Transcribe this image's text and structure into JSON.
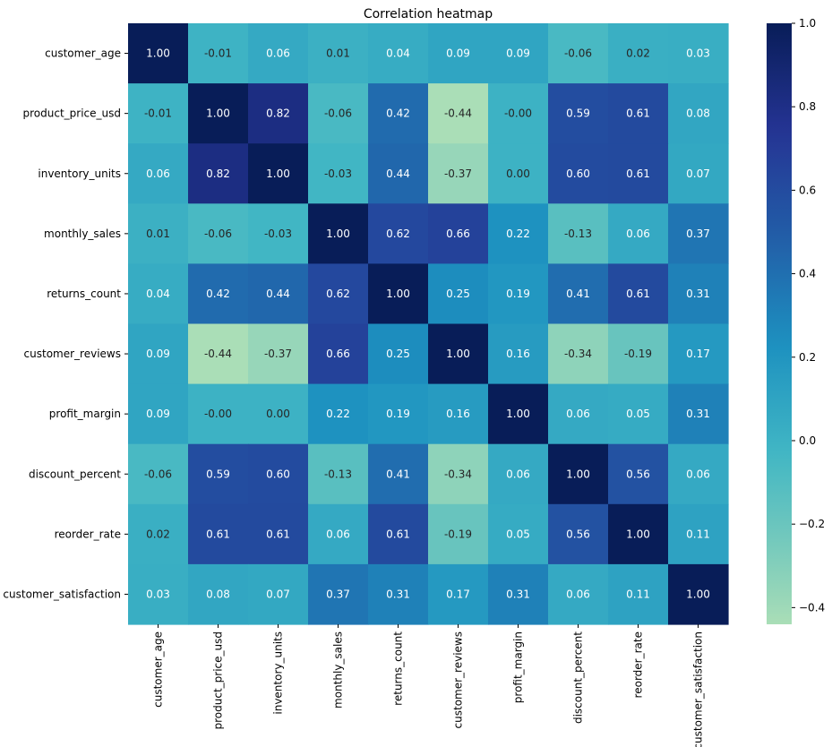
{
  "chart_data": {
    "type": "heatmap",
    "title": "Correlation heatmap",
    "xlabel": "",
    "ylabel": "",
    "colormap": "YlGnBu",
    "annotated": true,
    "value_format": "0.00",
    "categories": [
      "customer_age",
      "product_price_usd",
      "inventory_units",
      "monthly_sales",
      "returns_count",
      "customer_reviews",
      "profit_margin",
      "discount_percent",
      "reorder_rate",
      "customer_satisfaction"
    ],
    "values": [
      [
        1.0,
        -0.01,
        0.06,
        0.01,
        0.04,
        0.09,
        0.09,
        -0.06,
        0.02,
        0.03
      ],
      [
        -0.01,
        1.0,
        0.82,
        -0.06,
        0.42,
        -0.44,
        -0.0,
        0.59,
        0.61,
        0.08
      ],
      [
        0.06,
        0.82,
        1.0,
        -0.03,
        0.44,
        -0.37,
        0.0,
        0.6,
        0.61,
        0.07
      ],
      [
        0.01,
        -0.06,
        -0.03,
        1.0,
        0.62,
        0.66,
        0.22,
        -0.13,
        0.06,
        0.37
      ],
      [
        0.04,
        0.42,
        0.44,
        0.62,
        1.0,
        0.25,
        0.19,
        0.41,
        0.61,
        0.31
      ],
      [
        0.09,
        -0.44,
        -0.37,
        0.66,
        0.25,
        1.0,
        0.16,
        -0.34,
        -0.19,
        0.17
      ],
      [
        0.09,
        -0.0,
        0.0,
        0.22,
        0.19,
        0.16,
        1.0,
        0.06,
        0.05,
        0.31
      ],
      [
        -0.06,
        0.59,
        0.6,
        -0.13,
        0.41,
        -0.34,
        0.06,
        1.0,
        0.56,
        0.06
      ],
      [
        0.02,
        0.61,
        0.61,
        0.06,
        0.61,
        -0.19,
        0.05,
        0.56,
        1.0,
        0.11
      ],
      [
        0.03,
        0.08,
        0.07,
        0.37,
        0.31,
        0.17,
        0.31,
        0.06,
        0.11,
        1.0
      ]
    ],
    "colorbar": {
      "range": [
        -0.44,
        1.0
      ],
      "ticks": [
        1.0,
        0.8,
        0.6,
        0.4,
        0.2,
        0.0,
        -0.2,
        -0.4
      ],
      "tick_labels": [
        "1.0",
        "0.8",
        "0.6",
        "0.4",
        "0.2",
        "0.0",
        "−0.2",
        "−0.4"
      ],
      "placement": "right"
    },
    "grid": false
  }
}
